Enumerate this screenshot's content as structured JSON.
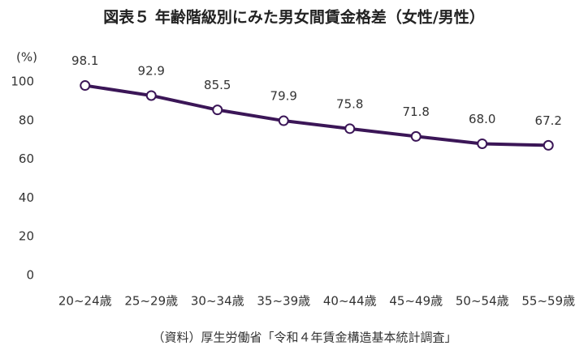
{
  "chart_data": {
    "type": "line",
    "title": "図表５ 年齢階級別にみた男女間賃金格差（女性/男性）",
    "y_unit": "(%)",
    "source": "（資料）厚生労働省「令和４年賃金構造基本統計調査」",
    "categories": [
      "20~24歳",
      "25~29歳",
      "30~34歳",
      "35~39歳",
      "40~44歳",
      "45~49歳",
      "50~54歳",
      "55~59歳"
    ],
    "values": [
      98.1,
      92.9,
      85.5,
      79.9,
      75.8,
      71.8,
      68.0,
      67.2
    ],
    "value_labels": [
      "98.1",
      "92.9",
      "85.5",
      "79.9",
      "75.8",
      "71.8",
      "68.0",
      "67.2"
    ],
    "color": "#3b1657",
    "ylim": [
      0,
      100
    ],
    "yticks": [
      0,
      20,
      40,
      60,
      80,
      100
    ],
    "grid": false
  }
}
